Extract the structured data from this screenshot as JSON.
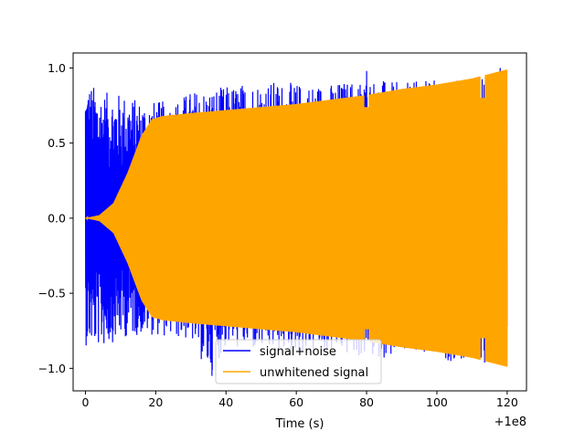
{
  "chart_data": {
    "type": "line",
    "title": "",
    "xlabel": "Time (s)",
    "ylabel": "",
    "x_offset_label": "+1e8",
    "xlim": [
      -3.5,
      125.5
    ],
    "ylim": [
      -1.15,
      1.1
    ],
    "xticks": [
      0,
      20,
      40,
      60,
      80,
      100,
      120
    ],
    "yticks": [
      -1.0,
      -0.5,
      0.0,
      0.5,
      1.0
    ],
    "xtick_labels": [
      "0",
      "20",
      "40",
      "60",
      "80",
      "100",
      "120"
    ],
    "ytick_labels": [
      "−1.0",
      "−0.5",
      "0.0",
      "0.5",
      "1.0"
    ],
    "grid": false,
    "legend_position": "lower-center",
    "series": [
      {
        "name": "signal+noise",
        "color": "#0000ff",
        "x": [
          0,
          120
        ],
        "upper_envelope": [
          [
            0,
            0.92
          ],
          [
            5,
            0.84
          ],
          [
            10,
            0.83
          ],
          [
            15,
            0.79
          ],
          [
            20,
            0.78
          ],
          [
            25,
            0.78
          ],
          [
            30,
            0.85
          ],
          [
            40,
            0.88
          ],
          [
            50,
            0.92
          ],
          [
            60,
            0.9
          ],
          [
            70,
            0.9
          ],
          [
            80,
            0.94
          ],
          [
            90,
            0.9
          ],
          [
            100,
            0.93
          ],
          [
            110,
            0.94
          ],
          [
            120,
            1.0
          ]
        ],
        "lower_envelope": [
          [
            0,
            -0.85
          ],
          [
            5,
            -0.86
          ],
          [
            10,
            -0.8
          ],
          [
            15,
            -0.78
          ],
          [
            20,
            -0.78
          ],
          [
            30,
            -0.82
          ],
          [
            35,
            -1.05
          ],
          [
            40,
            -0.86
          ],
          [
            50,
            -0.9
          ],
          [
            60,
            -0.9
          ],
          [
            70,
            -0.9
          ],
          [
            80,
            -0.94
          ],
          [
            90,
            -0.92
          ],
          [
            100,
            -0.95
          ],
          [
            110,
            -0.96
          ],
          [
            120,
            -0.99
          ]
        ],
        "spikes": [
          [
            36,
            -1.05
          ],
          [
            80,
            0.98
          ],
          [
            118,
            1.0
          ]
        ]
      },
      {
        "name": "unwhitened signal",
        "color": "#ffa500",
        "x": [
          0,
          120
        ],
        "envelope": [
          [
            0,
            0.0
          ],
          [
            4,
            0.02
          ],
          [
            8,
            0.1
          ],
          [
            12,
            0.3
          ],
          [
            16,
            0.55
          ],
          [
            19,
            0.66
          ],
          [
            22,
            0.68
          ],
          [
            30,
            0.7
          ],
          [
            40,
            0.72
          ],
          [
            50,
            0.74
          ],
          [
            60,
            0.76
          ],
          [
            70,
            0.79
          ],
          [
            80,
            0.82
          ],
          [
            90,
            0.86
          ],
          [
            100,
            0.89
          ],
          [
            110,
            0.93
          ],
          [
            120,
            0.99
          ]
        ],
        "notches": [
          [
            80,
            0.74
          ],
          [
            113,
            0.8
          ]
        ]
      }
    ]
  }
}
